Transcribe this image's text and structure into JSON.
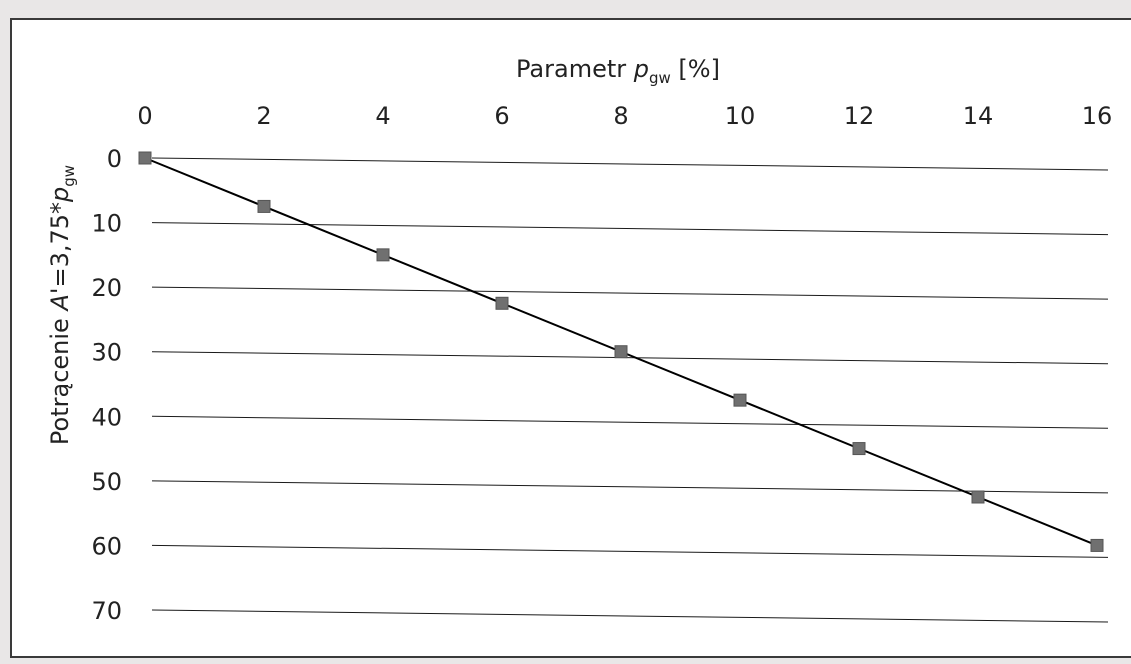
{
  "chart_data": {
    "type": "scatter",
    "x_axis": {
      "label_main": "Parametr ",
      "label_var": "p",
      "label_sub": "gw",
      "label_unit": " [%]",
      "position": "top",
      "ticks": [
        0,
        2,
        4,
        6,
        8,
        10,
        12,
        14,
        16
      ],
      "xlim": [
        0,
        16
      ]
    },
    "y_axis": {
      "label_main": "Potrącenie ",
      "label_var": "A'",
      "label_mid": "=3,75*",
      "label_var2": "p",
      "label_sub": "gw",
      "reversed": true,
      "ticks": [
        0,
        10,
        20,
        30,
        40,
        50,
        60,
        70
      ],
      "ylim": [
        0,
        70
      ]
    },
    "grid": "horizontal",
    "series": [
      {
        "marker": "square",
        "color": "#707070",
        "x": [
          0,
          2,
          4,
          6,
          8,
          10,
          12,
          14,
          16
        ],
        "y": [
          0,
          7.5,
          15,
          22.5,
          30,
          37.5,
          45,
          52.5,
          60
        ]
      }
    ],
    "trendline": {
      "color": "#000000",
      "x": [
        0,
        16
      ],
      "y": [
        0,
        60
      ]
    }
  }
}
